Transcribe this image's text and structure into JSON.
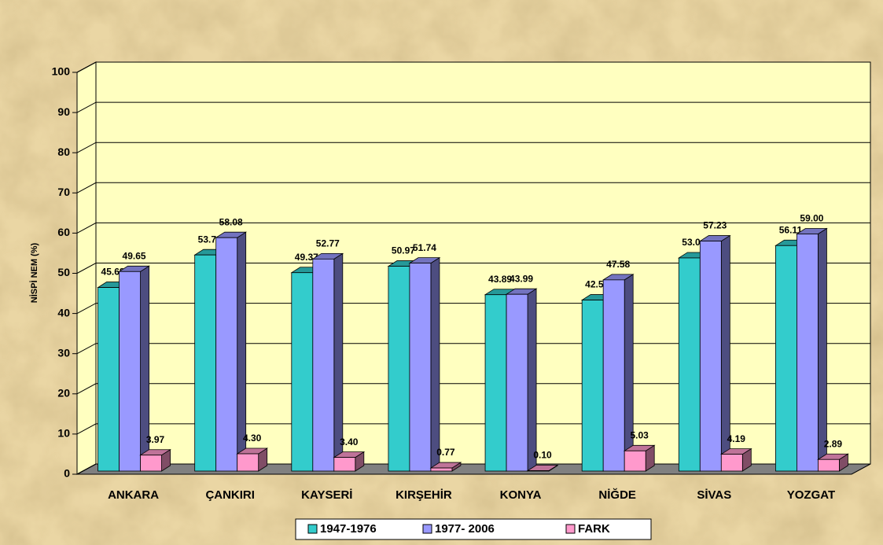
{
  "chart_data": {
    "type": "bar3d",
    "ylabel": "NİSPİ NEM (%)",
    "categories": [
      "ANKARA",
      "ÇANKIRI",
      "KAYSERİ",
      "KIRŞEHİR",
      "KONYA",
      "NİĞDE",
      "SİVAS",
      "YOZGAT"
    ],
    "series": [
      {
        "name": "1947-1976",
        "color": "#33cccc",
        "values": [
          45.68,
          53.78,
          49.37,
          50.97,
          43.89,
          42.55,
          53.04,
          56.11
        ],
        "value_labels": [
          "45.68",
          "53.78",
          "49.37",
          "50.97",
          "43.89",
          "42.55",
          "53.04",
          "56.11"
        ]
      },
      {
        "name": "1977- 2006",
        "color": "#9999ff",
        "values": [
          49.65,
          58.08,
          52.77,
          51.74,
          43.99,
          47.58,
          57.23,
          59.0
        ],
        "value_labels": [
          "49.65",
          "58.08",
          "52.77",
          "51.74",
          "43.99",
          "47.58",
          "57.23",
          "59.00"
        ]
      },
      {
        "name": "FARK",
        "color": "#ff99cc",
        "values": [
          3.97,
          4.3,
          3.4,
          0.77,
          0.1,
          5.03,
          4.19,
          2.89
        ],
        "value_labels": [
          "3.97",
          "4.30",
          "3.40",
          "0.77",
          "0.10",
          "5.03",
          "4.19",
          "2.89"
        ]
      }
    ],
    "ylim": [
      0,
      100
    ],
    "yticks": [
      0,
      10,
      20,
      30,
      40,
      50,
      60,
      70,
      80,
      90,
      100
    ],
    "grid": true
  }
}
